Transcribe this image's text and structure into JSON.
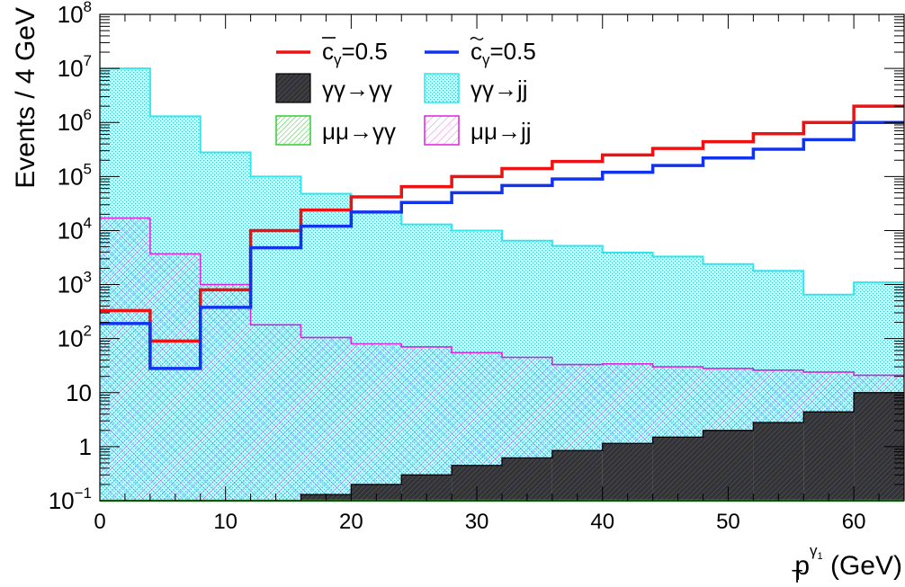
{
  "chart_data": {
    "type": "histogram",
    "x_axis": {
      "label_main": "p",
      "label_sub": "T",
      "label_sup": "γ",
      "label_sup_sub": "1",
      "label_unit": " (GeV)",
      "range": [
        0,
        64
      ],
      "ticks": [
        0,
        10,
        20,
        30,
        40,
        50,
        60
      ]
    },
    "y_axis": {
      "label": "Events / 4 GeV",
      "scale": "log",
      "range": [
        0.1,
        100000000
      ],
      "tick_labels": [
        {
          "value": 0.1,
          "base": "10",
          "exp": "−1"
        },
        {
          "value": 1,
          "base": "1",
          "exp": ""
        },
        {
          "value": 10,
          "base": "10",
          "exp": ""
        },
        {
          "value": 100,
          "base": "10",
          "exp": "2"
        },
        {
          "value": 1000,
          "base": "10",
          "exp": "3"
        },
        {
          "value": 10000,
          "base": "10",
          "exp": "4"
        },
        {
          "value": 100000,
          "base": "10",
          "exp": "5"
        },
        {
          "value": 1000000,
          "base": "10",
          "exp": "6"
        },
        {
          "value": 10000000,
          "base": "10",
          "exp": "7"
        },
        {
          "value": 100000000,
          "base": "10",
          "exp": "8"
        }
      ]
    },
    "bin_edges": [
      0,
      4,
      8,
      12,
      16,
      20,
      24,
      28,
      32,
      36,
      40,
      44,
      48,
      52,
      56,
      60,
      64
    ],
    "series": [
      {
        "id": "aa_jj",
        "name": "γγ→jj",
        "style": "filled-dots",
        "color": "#33e6ee",
        "values": [
          10000000,
          1300000,
          280000,
          100000,
          48000,
          22000,
          13000,
          10000,
          6500,
          5200,
          3900,
          3300,
          2400,
          1800,
          650,
          1100
        ]
      },
      {
        "id": "mumu_jj",
        "name": "μμ→jj",
        "style": "hatched",
        "color": "#dd22dd",
        "values": [
          17000,
          3700,
          1000,
          180,
          105,
          80,
          70,
          55,
          45,
          33,
          34,
          30,
          28,
          26,
          24,
          21
        ]
      },
      {
        "id": "mumu_aa",
        "name": "μμ→γγ",
        "style": "hatched",
        "color": "#33cc33",
        "values": [
          0.1,
          0.1,
          0.1,
          0.1,
          0.1,
          0.1,
          0.1,
          0.1,
          0.1,
          0.1,
          0.1,
          0.1,
          0.1,
          0.1,
          0.1,
          0.1
        ]
      },
      {
        "id": "aa_aa",
        "name": "γγ→γγ",
        "style": "filled-dark",
        "color": "#333333",
        "values": [
          0,
          0,
          0,
          0,
          0.13,
          0.2,
          0.3,
          0.45,
          0.62,
          0.85,
          1.15,
          1.5,
          2.0,
          2.8,
          4.4,
          10
        ]
      },
      {
        "id": "cbar",
        "name_main": "c",
        "name_sub": "γ",
        "name_tail": "=0.5",
        "name_accent": "bar",
        "style": "line",
        "color": "#ee1111",
        "values": [
          330,
          90,
          800,
          10000,
          24000,
          42000,
          65000,
          100000,
          140000,
          190000,
          250000,
          330000,
          440000,
          620000,
          1000000,
          2000000
        ]
      },
      {
        "id": "ctilde",
        "name_main": "c",
        "name_sub": "γ",
        "name_tail": "=0.5",
        "name_accent": "tilde",
        "style": "line",
        "color": "#1133ee",
        "values": [
          190,
          28,
          380,
          4800,
          12000,
          22000,
          33000,
          50000,
          68000,
          90000,
          120000,
          160000,
          220000,
          320000,
          480000,
          1000000
        ]
      }
    ]
  }
}
